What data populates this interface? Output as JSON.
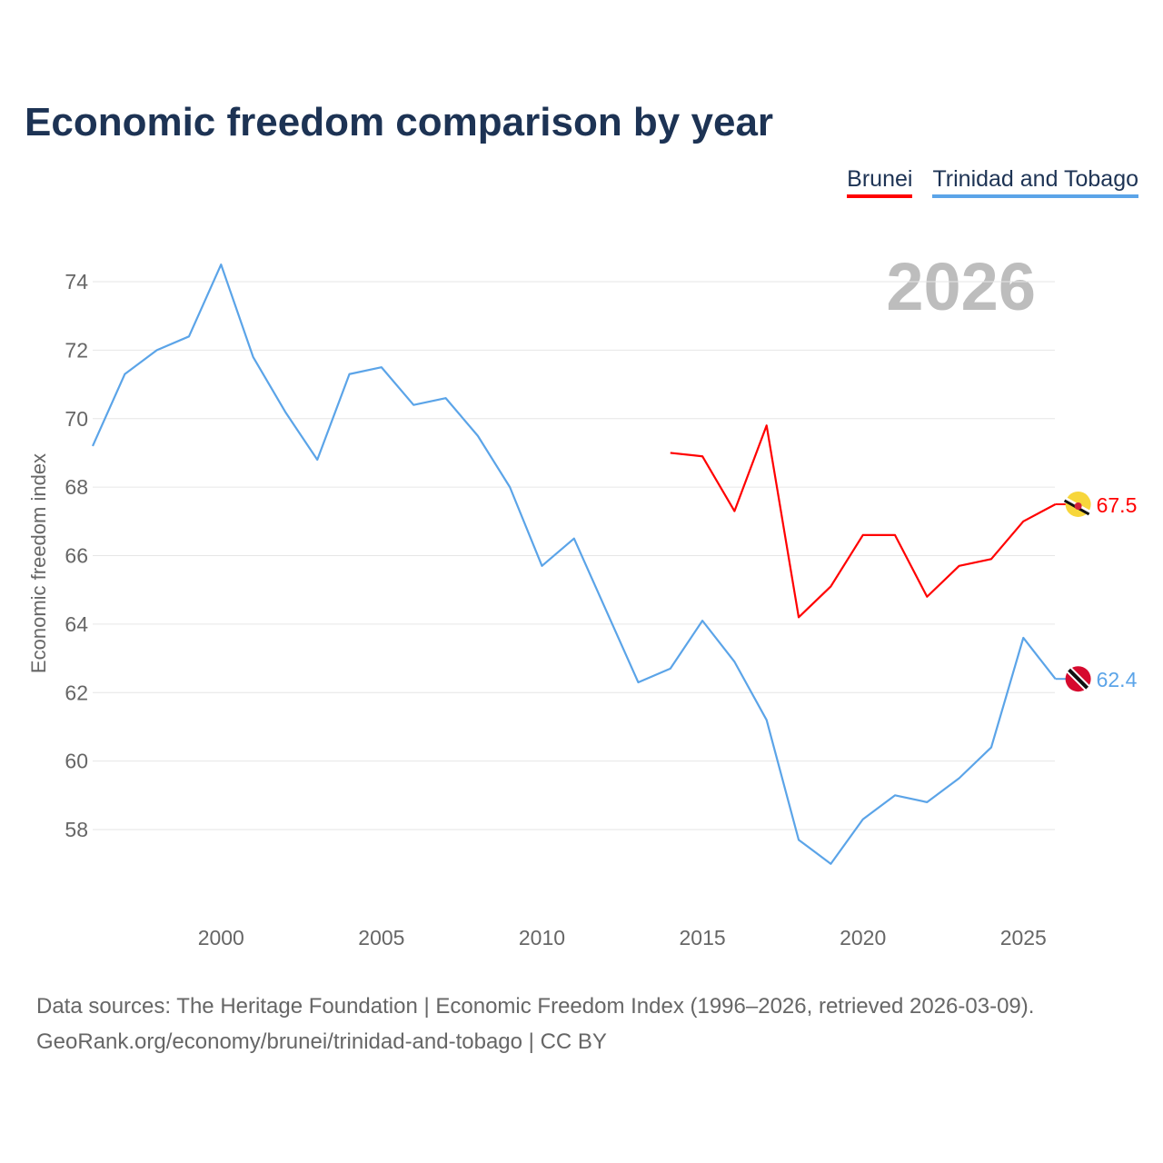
{
  "title": "Economic freedom comparison by year",
  "source_line1": "Data sources: The Heritage Foundation | Economic Freedom Index (1996–2026, retrieved 2026-03-09).",
  "source_line2": "GeoRank.org/economy/brunei/trinidad-and-tobago | CC BY",
  "chart_data": {
    "type": "line",
    "title": "Economic freedom comparison by year",
    "ylabel": "Economic freedom index",
    "xlabel": "",
    "year_label": "2026",
    "xlim": [
      1996,
      2026
    ],
    "ylim": [
      56,
      75
    ],
    "xticks": [
      2000,
      2005,
      2010,
      2015,
      2020,
      2025
    ],
    "yticks": [
      58,
      60,
      62,
      64,
      66,
      68,
      70,
      72,
      74
    ],
    "grid": true,
    "legend_position": "top-right",
    "series": [
      {
        "name": "Brunei",
        "color": "#ff0000",
        "end_label": "67.5",
        "x": [
          2014,
          2015,
          2016,
          2017,
          2018,
          2019,
          2020,
          2021,
          2022,
          2023,
          2024,
          2025,
          2026
        ],
        "values": [
          69.0,
          68.9,
          67.3,
          69.8,
          64.2,
          65.1,
          66.6,
          66.6,
          64.8,
          65.7,
          65.9,
          67.0,
          67.5
        ]
      },
      {
        "name": "Trinidad and Tobago",
        "color": "#5ba4e8",
        "end_label": "62.4",
        "x": [
          1996,
          1997,
          1998,
          1999,
          2000,
          2001,
          2002,
          2003,
          2004,
          2005,
          2006,
          2007,
          2008,
          2009,
          2010,
          2011,
          2012,
          2013,
          2014,
          2015,
          2016,
          2017,
          2018,
          2019,
          2020,
          2021,
          2022,
          2023,
          2024,
          2025,
          2026
        ],
        "values": [
          69.2,
          71.3,
          72.0,
          72.4,
          74.5,
          71.8,
          70.2,
          68.8,
          71.3,
          71.5,
          70.4,
          70.6,
          69.5,
          68.0,
          65.7,
          66.5,
          64.4,
          62.3,
          62.7,
          64.1,
          62.9,
          61.2,
          57.7,
          57.0,
          58.3,
          59.0,
          58.8,
          59.5,
          60.4,
          63.6,
          62.4
        ]
      }
    ]
  }
}
